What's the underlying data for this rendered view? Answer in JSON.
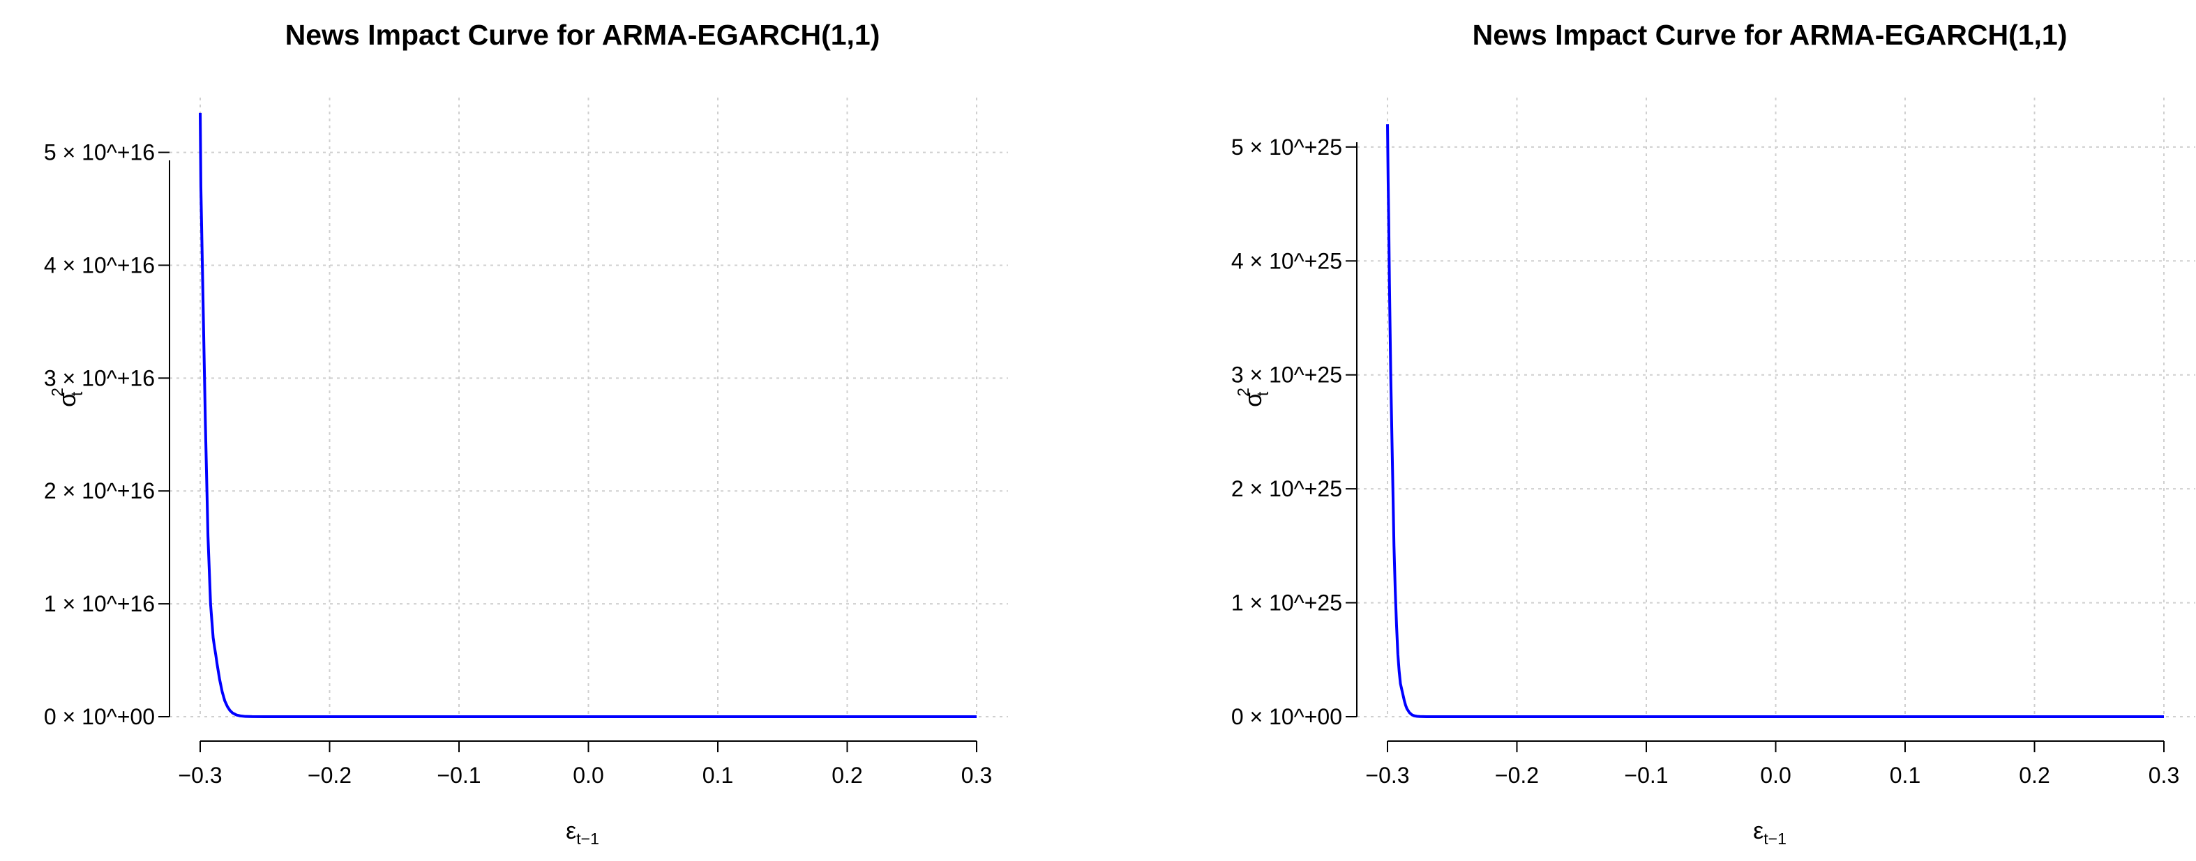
{
  "chart_data": [
    {
      "type": "line",
      "title": "News Impact Curve for ARMA-EGARCH(1,1)",
      "xlabel": {
        "symbol": "ε",
        "subscript": "t−1"
      },
      "ylabel": {
        "symbol": "σ",
        "superscript": "2",
        "subscript": "t"
      },
      "xlim": [
        -0.3,
        0.3
      ],
      "ylim": [
        0,
        5.3e+16
      ],
      "x_ticks": [
        -0.3,
        -0.2,
        -0.1,
        0.0,
        0.1,
        0.2,
        0.3
      ],
      "x_tick_labels": [
        "−0.3",
        "−0.2",
        "−0.1",
        "0.0",
        "0.1",
        "0.2",
        "0.3"
      ],
      "y_ticks": [
        0,
        1e+16,
        2e+16,
        3e+16,
        4e+16,
        5e+16
      ],
      "y_tick_labels": [
        "0 × 10^+00",
        "1 × 10^+16",
        "2 × 10^+16",
        "3 × 10^+16",
        "4 × 10^+16",
        "5 × 10^+16"
      ],
      "grid": true,
      "series": [
        {
          "color": "#0000ff",
          "x": [
            -0.3,
            -0.2995,
            -0.299,
            -0.298,
            -0.297,
            -0.296,
            -0.295,
            -0.294,
            -0.293,
            -0.292,
            -0.291,
            -0.29,
            -0.289,
            -0.288,
            -0.287,
            -0.285,
            -0.283,
            -0.281,
            -0.279,
            -0.277,
            -0.275,
            -0.272,
            -0.269,
            -0.265,
            -0.26,
            -0.25,
            -0.2,
            -0.1,
            0.0,
            0.1,
            0.2,
            0.3
          ],
          "y": [
            5.35e+16,
            4.7e+16,
            4.4e+16,
            3.8e+16,
            3.2e+16,
            2.6e+16,
            2.1e+16,
            1.6e+16,
            1.3e+16,
            1e+16,
            8500000000000000.0,
            7000000000000000.0,
            6200000000000000.0,
            5500000000000000.0,
            4700000000000000.0,
            3300000000000000.0,
            2200000000000000.0,
            1400000000000000.0,
            900000000000000.0,
            550000000000000.0,
            330000000000000.0,
            150000000000000.0,
            70000000000000.0,
            20000000000000.0,
            5000000000000.0,
            1000000000000.0,
            0,
            0,
            0,
            0,
            0,
            0
          ]
        }
      ]
    },
    {
      "type": "line",
      "title": "News Impact Curve for ARMA-EGARCH(1,1)",
      "xlabel": {
        "symbol": "ε",
        "subscript": "t−1"
      },
      "ylabel": {
        "symbol": "σ",
        "superscript": "2",
        "subscript": "t"
      },
      "xlim": [
        -0.3,
        0.3
      ],
      "ylim": [
        0,
        5.25e+25
      ],
      "x_ticks": [
        -0.3,
        -0.2,
        -0.1,
        0.0,
        0.1,
        0.2,
        0.3
      ],
      "x_tick_labels": [
        "−0.3",
        "−0.2",
        "−0.1",
        "0.0",
        "0.1",
        "0.2",
        "0.3"
      ],
      "y_ticks": [
        0,
        1e+25,
        2e+25,
        3e+25,
        4e+25,
        5e+25
      ],
      "y_tick_labels": [
        "0 × 10^+00",
        "1 × 10^+25",
        "2 × 10^+25",
        "3 × 10^+25",
        "4 × 10^+25",
        "5 × 10^+25"
      ],
      "grid": true,
      "series": [
        {
          "color": "#0000ff",
          "x": [
            -0.3,
            -0.2995,
            -0.299,
            -0.2985,
            -0.298,
            -0.2975,
            -0.297,
            -0.2965,
            -0.296,
            -0.2955,
            -0.295,
            -0.294,
            -0.293,
            -0.292,
            -0.291,
            -0.29,
            -0.289,
            -0.288,
            -0.287,
            -0.286,
            -0.285,
            -0.283,
            -0.281,
            -0.279,
            -0.277,
            -0.275,
            -0.27,
            -0.265,
            -0.26,
            -0.2,
            -0.1,
            0.0,
            0.1,
            0.2,
            0.3
          ],
          "y": [
            5.2e+25,
            4.7e+25,
            4.3e+25,
            3.8e+25,
            3.4e+25,
            3e+25,
            2.7e+25,
            2.4e+25,
            2.1e+25,
            1.8e+25,
            1.5e+25,
            1.1e+25,
            8e+24,
            5.5e+24,
            4e+24,
            2.9e+24,
            2.4e+24,
            1.9e+24,
            1.4e+24,
            1e+24,
            7e+23,
            3.5e+23,
            1.5e+23,
            7e+22,
            3e+22,
            1.2e+22,
            2e+21,
            5e+20,
            0,
            0,
            0,
            0,
            0,
            0,
            0
          ]
        }
      ]
    }
  ]
}
